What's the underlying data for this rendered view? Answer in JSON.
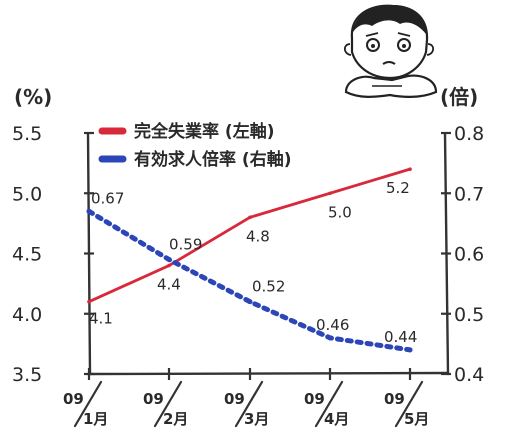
{
  "chart_data": {
    "type": "line",
    "categories": [
      "09/1月",
      "09/2月",
      "09/3月",
      "09/4月",
      "09/5月"
    ],
    "category_parts": [
      {
        "year": "09",
        "month": "1月"
      },
      {
        "year": "09",
        "month": "2月"
      },
      {
        "year": "09",
        "month": "3月"
      },
      {
        "year": "09",
        "month": "4月"
      },
      {
        "year": "09",
        "month": "5月"
      }
    ],
    "y_left": {
      "unit": "(%)",
      "ticks": [
        "5.5",
        "5.0",
        "4.5",
        "4.0",
        "3.5"
      ],
      "range": [
        3.5,
        5.5
      ]
    },
    "y_right": {
      "unit": "(倍)",
      "ticks": [
        "0.8",
        "0.7",
        "0.6",
        "0.5",
        "0.4"
      ],
      "range": [
        0.4,
        0.8
      ]
    },
    "series": [
      {
        "name": "完全失業率 (左軸)",
        "axis": "left",
        "color": "#d8283a",
        "style": "solid",
        "values": [
          4.1,
          4.4,
          4.8,
          5.0,
          5.2
        ],
        "labels": [
          "4.1",
          "4.4",
          "4.8",
          "5.0",
          "5.2"
        ]
      },
      {
        "name": "有効求人倍率 (右軸)",
        "axis": "right",
        "color": "#2c46b8",
        "style": "dotted",
        "values": [
          0.67,
          0.59,
          0.52,
          0.46,
          0.44
        ],
        "labels": [
          "0.67",
          "0.59",
          "0.52",
          "0.46",
          "0.44"
        ]
      }
    ],
    "grid": false,
    "legend_position": "top"
  },
  "decoration": {
    "icon": "worried-person-icon"
  }
}
